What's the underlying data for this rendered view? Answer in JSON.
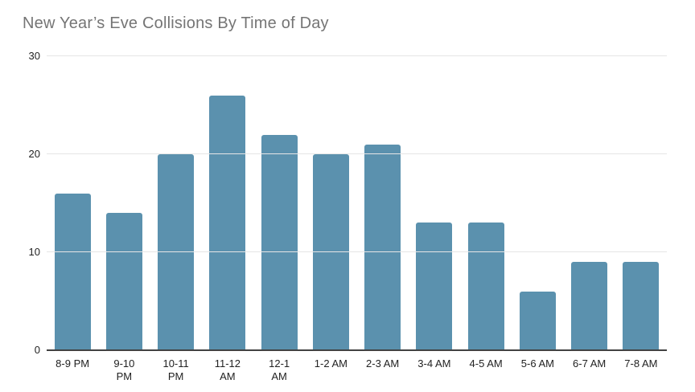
{
  "chart_data": {
    "type": "bar",
    "title": "New Year’s Eve Collisions By Time of Day",
    "categories": [
      "8-9 PM",
      "9-10 PM",
      "10-11 PM",
      "11-12 AM",
      "12-1 AM",
      "1-2 AM",
      "2-3 AM",
      "3-4 AM",
      "4-5 AM",
      "5-6 AM",
      "6-7 AM",
      "7-8 AM"
    ],
    "values": [
      16,
      14,
      20,
      26,
      22,
      20,
      21,
      13,
      13,
      6,
      9,
      9
    ],
    "x_tick_display": [
      "8-9 PM",
      "9-10\nPM",
      "10-11\nPM",
      "11-12\nAM",
      "12-1\nAM",
      "1-2 AM",
      "2-3 AM",
      "3-4 AM",
      "4-5 AM",
      "5-6 AM",
      "6-7 AM",
      "7-8 AM"
    ],
    "xlabel": "",
    "ylabel": "",
    "ylim": [
      0,
      30
    ],
    "y_ticks": [
      0,
      10,
      20,
      30
    ],
    "grid": true,
    "legend_position": "none",
    "colors": {
      "bar": "#5b91ae",
      "gridline": "#e6e6e6",
      "axis_line": "#424242",
      "title_text": "#757575",
      "tick_text": "#222222"
    }
  }
}
